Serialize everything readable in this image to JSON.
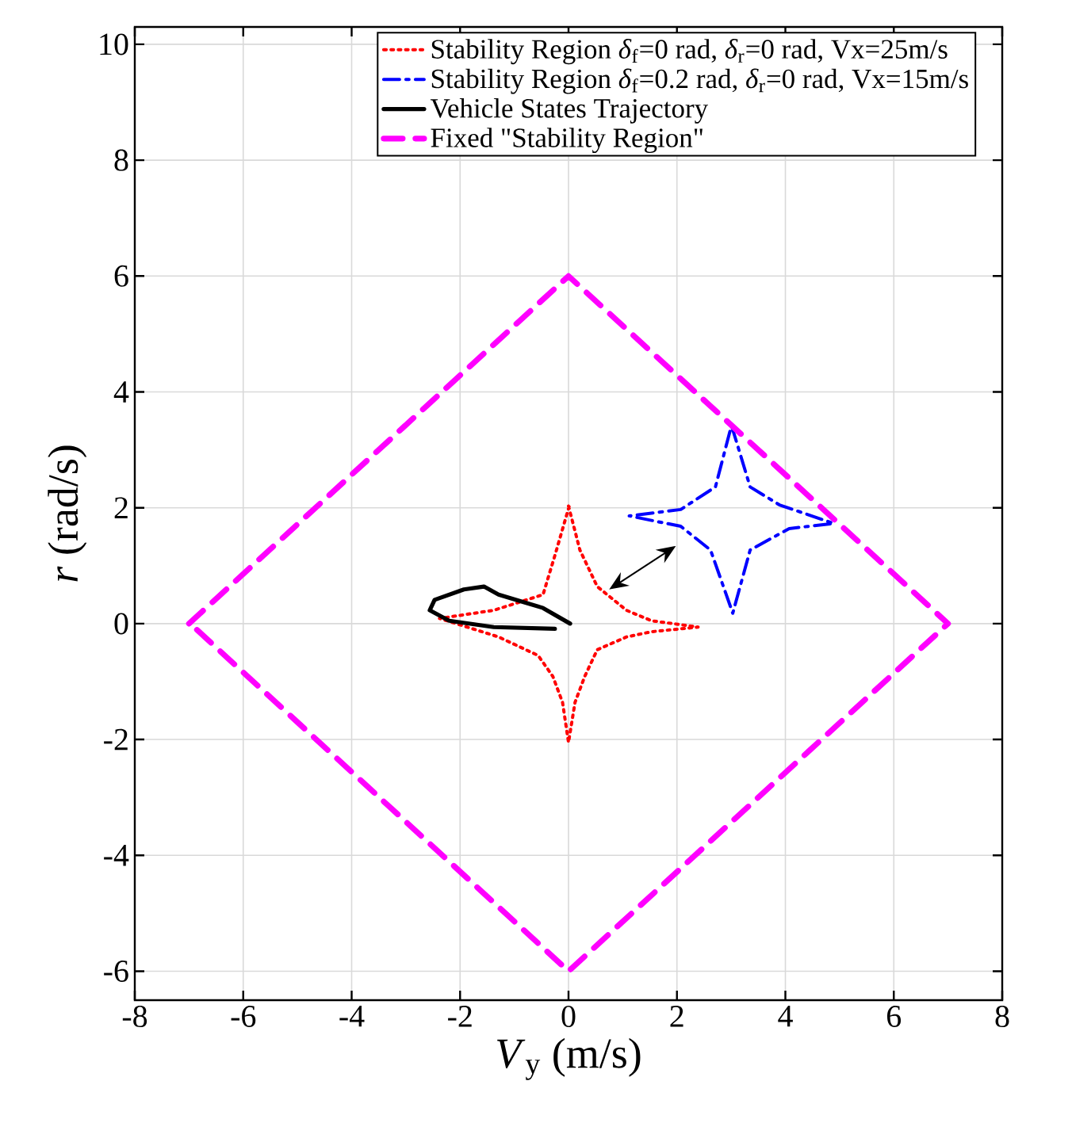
{
  "chart_data": {
    "type": "line",
    "xlabel": "*V*$_{y}$ (m/s)",
    "ylabel": "*r* (rad/s)",
    "xlim": [
      -8,
      8
    ],
    "ylim": [
      -6.5,
      10.3
    ],
    "xticks": [
      -8,
      -6,
      -4,
      -2,
      0,
      2,
      4,
      6,
      8
    ],
    "yticks": [
      -6,
      -4,
      -2,
      0,
      2,
      4,
      6,
      8,
      10
    ],
    "grid": true,
    "legend": "top right",
    "marker": "none",
    "series": [
      {
        "name": "Stability Region *δ*$_{f}$=0 rad, *δ*$_{r}$=0 rad, Vx=25m/s",
        "color": "#ff0000",
        "line_style": "dotted",
        "x": [
          0,
          0.21,
          0.53,
          1.07,
          1.53,
          2.39,
          1.53,
          1.07,
          0.53,
          0.3,
          0.12,
          0,
          -0.11,
          -0.29,
          -0.56,
          -1.29,
          -2.38,
          -1.38,
          -0.47,
          -0.25,
          0.01
        ],
        "values": [
          2.03,
          1.27,
          0.64,
          0.23,
          0.05,
          -0.06,
          -0.14,
          -0.23,
          -0.45,
          -0.91,
          -1.36,
          -2.05,
          -1.36,
          -0.91,
          -0.55,
          -0.23,
          0.09,
          0.23,
          0.5,
          1.18,
          2.02
        ]
      },
      {
        "name": "Stability Region *δ*$_{f}$=0.2 rad, *δ*$_{r}$=0 rad, Vx=15m/s",
        "color": "#0000ff",
        "line_style": "dashdot",
        "x": [
          3.01,
          3.35,
          3.89,
          4.89,
          4.07,
          3.35,
          3.03,
          2.62,
          2.07,
          1.12,
          2.07,
          2.71,
          3.0
        ],
        "values": [
          3.41,
          2.36,
          2.05,
          1.73,
          1.64,
          1.27,
          0.18,
          1.27,
          1.68,
          1.86,
          1.97,
          2.36,
          3.4
        ]
      },
      {
        "name": "Vehicle States Trajectory",
        "color": "#000000",
        "line_style": "solid",
        "x": [
          0.03,
          -0.47,
          -1.29,
          -1.56,
          -1.93,
          -2.47,
          -2.56,
          -2.2,
          -1.38,
          -0.25
        ],
        "values": [
          0,
          0.27,
          0.5,
          0.64,
          0.59,
          0.41,
          0.23,
          0.05,
          -0.06,
          -0.09
        ]
      },
      {
        "name": "Fixed \"Stability Region\"",
        "color": "#ff00ff",
        "line_style": "dashed",
        "x": [
          -7,
          0,
          7,
          0,
          -6.99
        ],
        "values": [
          0,
          6,
          0,
          -6,
          0.01
        ]
      }
    ]
  }
}
